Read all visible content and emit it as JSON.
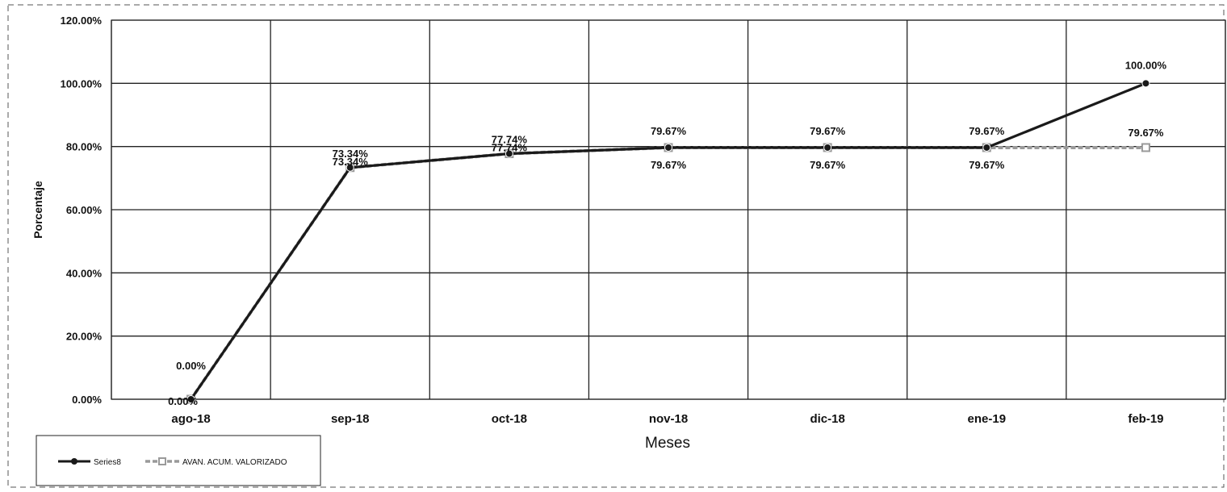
{
  "chart_data": {
    "type": "line",
    "title": "",
    "xlabel": "Meses",
    "ylabel": "Porcentaje",
    "categories": [
      "ago-18",
      "sep-18",
      "oct-18",
      "nov-18",
      "dic-18",
      "ene-19",
      "feb-19"
    ],
    "ylim": [
      0,
      120
    ],
    "yticks": [
      0,
      20,
      40,
      60,
      80,
      100,
      120
    ],
    "ytick_labels": [
      "0.00%",
      "20.00%",
      "40.00%",
      "60.00%",
      "80.00%",
      "100.00%",
      "120.00%"
    ],
    "grid": true,
    "legend_position": "bottom-left",
    "series": [
      {
        "name": "Series8",
        "style": "solid",
        "color": "#1a1a1a",
        "values": [
          0,
          73.34,
          77.74,
          79.67,
          79.67,
          79.67,
          100
        ],
        "labels": [
          "0.00%",
          "73.34%",
          "77.74%",
          "79.67%",
          "79.67%",
          "79.67%",
          "100.00%"
        ]
      },
      {
        "name": "AVAN. ACUM. VALORIZADO",
        "style": "dashed",
        "color": "#9a9a9a",
        "values": [
          0,
          73.34,
          77.74,
          79.67,
          79.67,
          79.67,
          79.67
        ],
        "labels": [
          "0.00%",
          "73.34%",
          "77.74%",
          "79.67%",
          "79.67%",
          "79.67%",
          "79.67%"
        ]
      }
    ]
  }
}
